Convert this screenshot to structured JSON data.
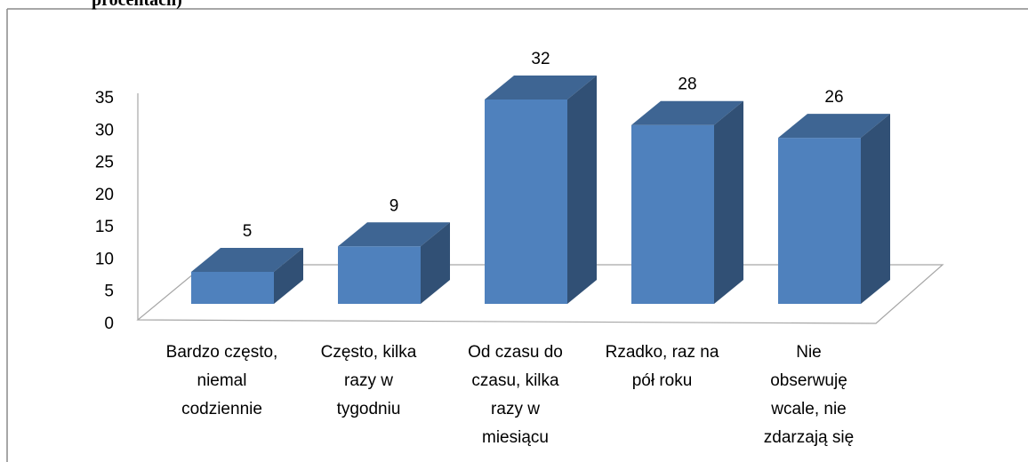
{
  "chart_data": {
    "type": "bar3d",
    "title": "procentach)",
    "categories": [
      "Bardzo często,\nniemal\ncodziennie",
      "Często, kilka\nrazy w\ntygodniu",
      "Od czasu do\nczasu, kilka\nrazy w\nmiesiącu",
      "Rzadko, raz na\npół roku",
      "Nie\nobserwuję\nwcale, nie\nzdarzają się"
    ],
    "values": [
      5,
      9,
      32,
      28,
      26
    ],
    "color": "#4f81bd",
    "ylim": [
      0,
      35
    ],
    "yticks": [
      0,
      5,
      10,
      15,
      20,
      25,
      30,
      35
    ],
    "grid": false
  }
}
